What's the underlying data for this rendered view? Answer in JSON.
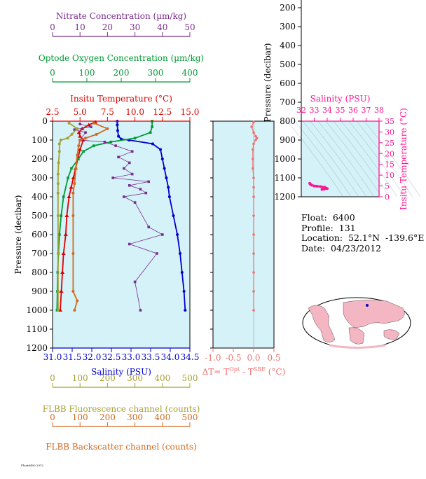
{
  "colors": {
    "temperature": "#e00000",
    "salinity": "#0000cc",
    "oxygen": "#009933",
    "nitrate": "#7a2d8c",
    "fluorescence": "#a8a030",
    "backscatter": "#d2691e",
    "deltaT": "#f07070",
    "ts_curve": "#ff1493",
    "panel_bg": "#d4f2f8",
    "map_land": "#f4b6c2"
  },
  "info": {
    "float": "Float:  6400",
    "profile": "Profile:  131",
    "location": "Location:  52.1°N  -139.6°E",
    "date": "Date:  04/23/2012"
  },
  "footer_text": "Float6400 2012",
  "chart_data": [
    {
      "type": "line",
      "panel": "main-profile",
      "ylabel": "Pressure (decibar)",
      "ylim": [
        1200,
        0
      ],
      "yticks": [
        "0",
        "100",
        "200",
        "300",
        "400",
        "500",
        "600",
        "700",
        "800",
        "900",
        "1000",
        "1100",
        "1200"
      ],
      "axes": {
        "nitrate": {
          "label": "Nitrate Concentration (µm/kg)",
          "range": [
            0,
            50
          ],
          "ticks": [
            "0",
            "10",
            "20",
            "30",
            "40",
            "50"
          ]
        },
        "oxygen": {
          "label": "Optode Oxygen Concentration (µm/kg)",
          "range": [
            0,
            400
          ],
          "ticks": [
            "0",
            "100",
            "200",
            "300",
            "400"
          ]
        },
        "temperature": {
          "label": "Insitu Temperature (°C)",
          "range": [
            2.5,
            15.0
          ],
          "ticks": [
            "2.5",
            "5.0",
            "7.5",
            "10.0",
            "12.5",
            "15.0"
          ]
        },
        "salinity": {
          "label": "Salinity (PSU)",
          "range": [
            31.0,
            34.5
          ],
          "ticks": [
            "31.0",
            "31.5",
            "32.0",
            "32.5",
            "33.0",
            "33.5",
            "34.0",
            "34.5"
          ]
        },
        "fluorescence": {
          "label": "FLBB Fluorescence channel (counts)",
          "range": [
            0,
            500
          ],
          "ticks": [
            "0",
            "100",
            "200",
            "300",
            "400",
            "500"
          ]
        },
        "backscatter": {
          "label": "FLBB Backscatter channel (counts)",
          "range": [
            0,
            500
          ],
          "ticks": [
            "0",
            "100",
            "200",
            "300",
            "400",
            "500"
          ]
        }
      },
      "series": [
        {
          "key": "temperature",
          "pressure": [
            5,
            20,
            40,
            60,
            80,
            100,
            150,
            200,
            250,
            300,
            350,
            400,
            500,
            600,
            700,
            800,
            900,
            1000
          ],
          "values": [
            6.4,
            5.8,
            5.2,
            4.9,
            5.0,
            5.3,
            5.0,
            4.8,
            4.6,
            4.4,
            4.2,
            4.0,
            3.8,
            3.7,
            3.5,
            3.4,
            3.3,
            3.2
          ]
        },
        {
          "key": "salinity",
          "pressure": [
            0,
            20,
            50,
            80,
            95,
            100,
            120,
            150,
            200,
            250,
            300,
            350,
            400,
            500,
            600,
            700,
            800,
            900,
            1000
          ],
          "values": [
            32.65,
            32.65,
            32.66,
            32.68,
            32.75,
            32.95,
            33.55,
            33.75,
            33.8,
            33.85,
            33.9,
            33.95,
            33.98,
            34.08,
            34.18,
            34.25,
            34.3,
            34.35,
            34.38
          ]
        },
        {
          "key": "oxygen",
          "pressure": [
            0,
            30,
            60,
            90,
            110,
            130,
            160,
            200,
            250,
            300,
            400,
            500,
            600,
            700,
            800,
            900,
            1000
          ],
          "values": [
            290,
            290,
            285,
            240,
            170,
            120,
            90,
            75,
            55,
            45,
            32,
            25,
            20,
            17,
            15,
            14,
            13
          ]
        },
        {
          "key": "nitrate",
          "pressure": [
            15,
            30,
            45,
            60,
            100,
            110,
            130,
            160,
            190,
            220,
            250,
            280,
            300,
            320,
            340,
            360,
            380,
            400,
            430,
            560,
            600,
            650,
            700,
            850,
            1000
          ],
          "values": [
            10,
            14,
            8,
            12,
            10,
            19,
            23,
            29,
            24,
            28,
            26,
            29,
            22,
            35,
            28,
            32,
            34,
            26,
            30,
            35,
            40,
            28,
            38,
            30,
            32
          ]
        },
        {
          "key": "fluorescence",
          "pressure": [
            10,
            40,
            70,
            90,
            100,
            120,
            160,
            220,
            280,
            330,
            380,
            500,
            700,
            900,
            1000
          ],
          "values": [
            60,
            90,
            70,
            55,
            30,
            25,
            25,
            22,
            20,
            20,
            20,
            20,
            20,
            20,
            20
          ]
        },
        {
          "key": "backscatter",
          "pressure": [
            10,
            40,
            70,
            90,
            100,
            130,
            180,
            250,
            330,
            380,
            500,
            700,
            900,
            950,
            1000
          ],
          "values": [
            150,
            200,
            160,
            120,
            100,
            95,
            90,
            85,
            80,
            75,
            75,
            75,
            75,
            90,
            80
          ]
        }
      ]
    },
    {
      "type": "scatter",
      "panel": "delta-t",
      "xlabel": "ΔT= T^Opt - T^SBE (°C)",
      "xlim": [
        -1.0,
        0.5
      ],
      "xticks": [
        "-1.0",
        "-0.5",
        "0.0",
        "0.5"
      ],
      "ylim": [
        1200,
        0
      ],
      "pressure": [
        5,
        30,
        60,
        80,
        90,
        100,
        120,
        150,
        200,
        250,
        300,
        350,
        400,
        500,
        600,
        700,
        800,
        900,
        1000
      ],
      "values": [
        0.0,
        -0.05,
        0.0,
        0.05,
        0.08,
        0.05,
        0.0,
        -0.02,
        -0.02,
        -0.02,
        0.0,
        0.0,
        0.0,
        0.0,
        0.0,
        0.0,
        0.0,
        0.0,
        0.0
      ]
    },
    {
      "type": "line",
      "panel": "ts-diagram",
      "title": "Salinity (PSU)",
      "xlim": [
        32,
        38
      ],
      "xticks": [
        "32",
        "33",
        "34",
        "35",
        "36",
        "37",
        "38"
      ],
      "ylabel": "Insitu Temperature (°C)",
      "ylim": [
        0,
        35
      ],
      "yticks": [
        "0",
        "5",
        "10",
        "15",
        "20",
        "25",
        "30",
        "35"
      ],
      "salinity": [
        32.65,
        32.7,
        32.8,
        33.0,
        33.2,
        33.5,
        33.8,
        33.9,
        34.0,
        33.8,
        33.6
      ],
      "temperature": [
        6.2,
        5.8,
        5.4,
        5.0,
        4.9,
        4.7,
        4.4,
        4.0,
        3.8,
        3.6,
        3.4
      ]
    },
    {
      "type": "table",
      "panel": "pressure-axis-top",
      "ylabel": "Pressure (decibar)",
      "yticks": [
        "200",
        "300",
        "400",
        "500",
        "600",
        "700",
        "800",
        "900",
        "1000",
        "1100",
        "1200"
      ]
    }
  ]
}
